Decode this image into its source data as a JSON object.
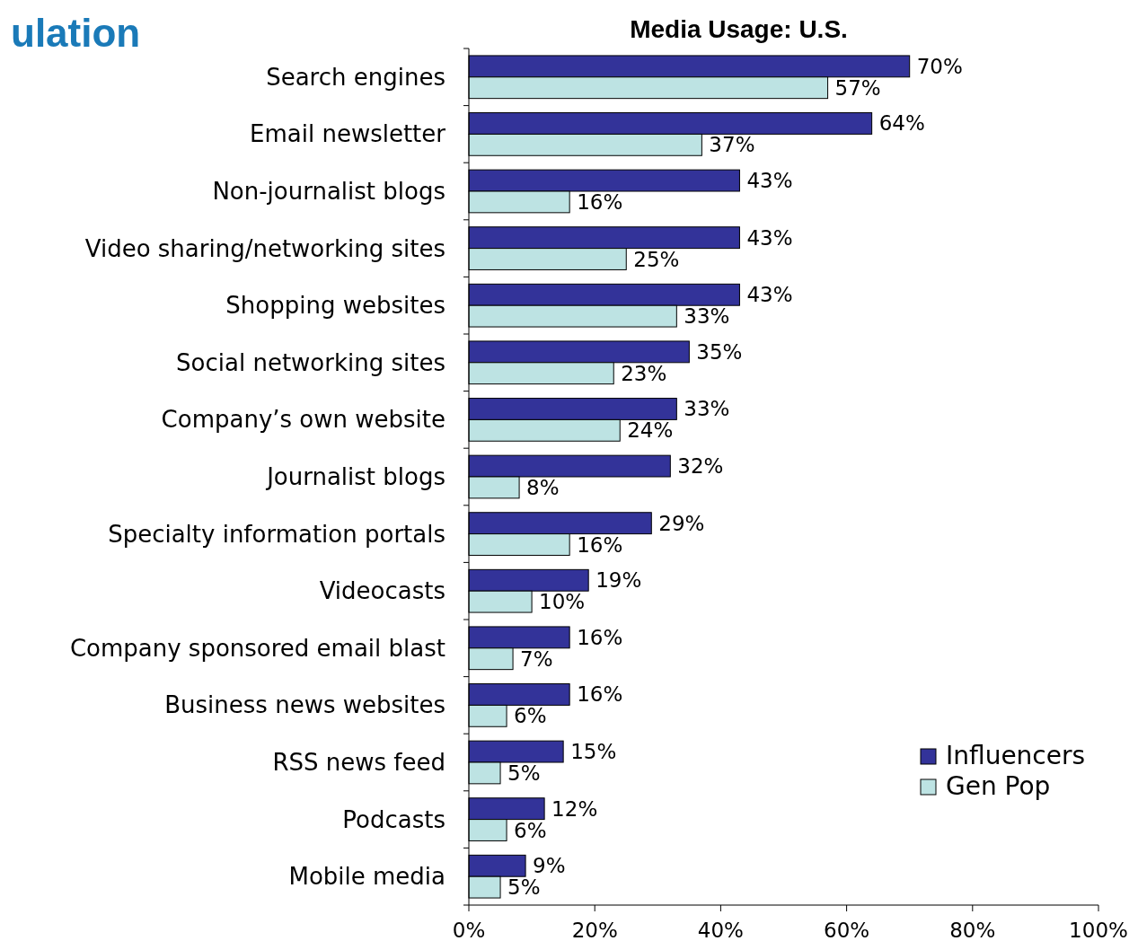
{
  "chart_data": {
    "type": "bar",
    "orientation": "horizontal",
    "title": "Media Usage: U.S.",
    "annotations": [
      "ulation"
    ],
    "categories": [
      "Search engines",
      "Email newsletter",
      "Non-journalist blogs",
      "Video sharing/networking sites",
      "Shopping websites",
      "Social networking sites",
      "Company’s own website",
      "Journalist blogs",
      "Specialty information portals",
      "Videocasts",
      "Company sponsored email blast",
      "Business news websites",
      "RSS news feed",
      "Podcasts",
      "Mobile media"
    ],
    "series": [
      {
        "name": "Influencers",
        "color": "#333399",
        "values": [
          70,
          64,
          43,
          43,
          43,
          35,
          33,
          32,
          29,
          19,
          16,
          16,
          15,
          12,
          9
        ],
        "value_labels": [
          "70%",
          "64%",
          "43%",
          "43%",
          "43%",
          "35%",
          "33%",
          "32%",
          "29%",
          "19%",
          "16%",
          "16%",
          "15%",
          "12%",
          "9%"
        ]
      },
      {
        "name": "Gen Pop",
        "color": "#bde3e3",
        "values": [
          57,
          37,
          16,
          25,
          33,
          23,
          24,
          8,
          16,
          10,
          7,
          6,
          5,
          6,
          5
        ],
        "value_labels": [
          "57%",
          "37%",
          "16%",
          "25%",
          "33%",
          "23%",
          "24%",
          "8%",
          "16%",
          "10%",
          "7%",
          "6%",
          "5%",
          "6%",
          "5%"
        ]
      }
    ],
    "xlim": [
      0,
      100
    ],
    "xticks": [
      {
        "value": 0,
        "label": "0%"
      },
      {
        "value": 20,
        "label": "20%"
      },
      {
        "value": 40,
        "label": "40%"
      },
      {
        "value": 60,
        "label": "60%"
      },
      {
        "value": 80,
        "label": "80%"
      },
      {
        "value": 100,
        "label": "100%"
      }
    ],
    "grid": false,
    "legend": "bottom right"
  }
}
